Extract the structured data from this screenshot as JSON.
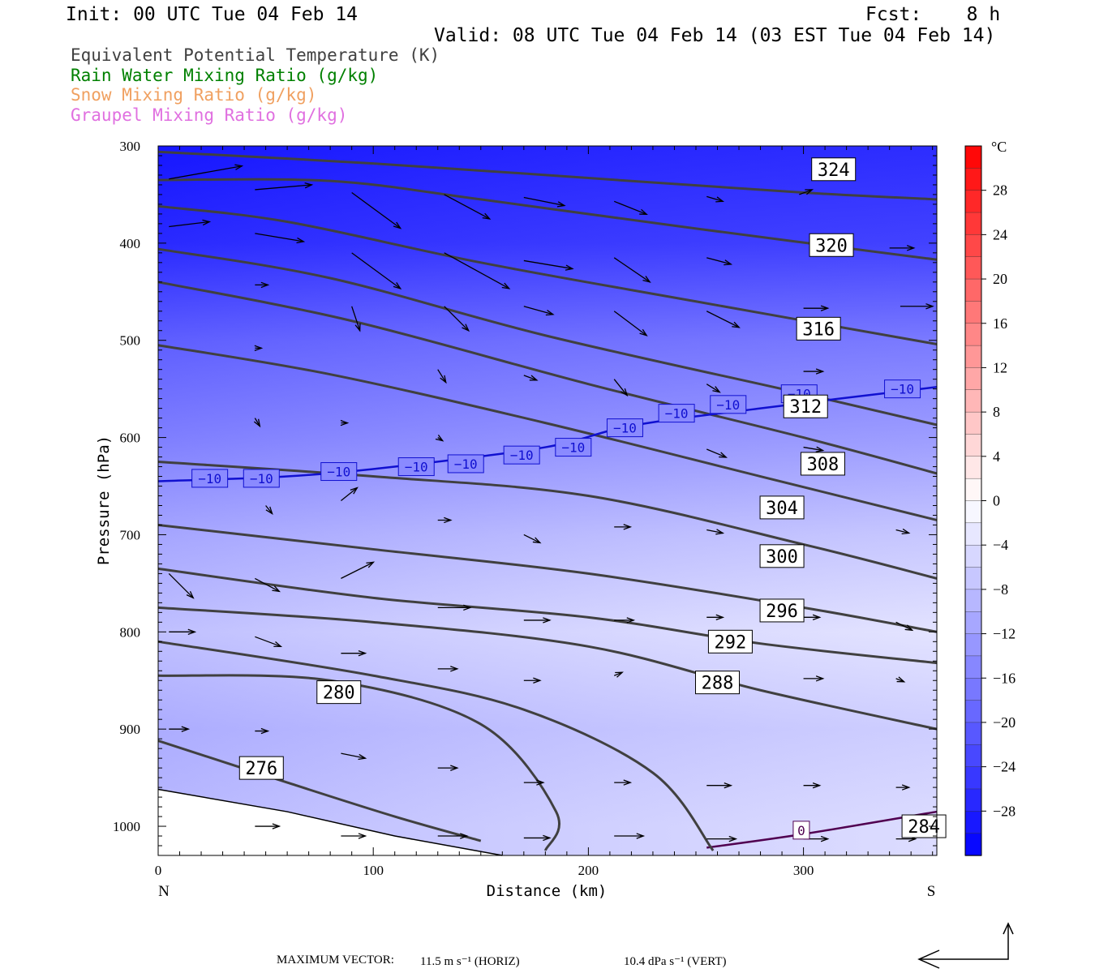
{
  "header": {
    "init": "Init: 00 UTC Tue 04 Feb 14",
    "fcst": "Fcst:    8 h",
    "valid": "Valid: 08 UTC Tue 04 Feb 14 (03 EST Tue 04 Feb 14)"
  },
  "legend": [
    {
      "text": "Equivalent Potential Temperature (K)",
      "color": "#404040"
    },
    {
      "text": "Rain Water Mixing Ratio (g/kg)",
      "color": "#008000"
    },
    {
      "text": "Snow Mixing Ratio (g/kg)",
      "color": "#f0a060"
    },
    {
      "text": "Graupel Mixing Ratio (g/kg)",
      "color": "#e070e0"
    }
  ],
  "footer": {
    "label": "MAXIMUM VECTOR:",
    "horiz": "11.5 m s⁻¹ (HORIZ)",
    "vert": "10.4 dPa s⁻¹ (VERT)"
  },
  "chart_data": {
    "type": "heatmap",
    "title": "",
    "xlabel": "Distance (km)",
    "ylabel": "Pressure (hPa)",
    "xlim": [
      0,
      362
    ],
    "ylim": [
      1030,
      300
    ],
    "xticks": [
      0,
      100,
      200,
      300
    ],
    "yticks": [
      300,
      400,
      500,
      600,
      700,
      800,
      900,
      1000
    ],
    "x_end_labels": {
      "left": "N",
      "right": "S"
    },
    "colorbar": {
      "unit": "°C",
      "ticks": [
        28,
        24,
        20,
        16,
        12,
        8,
        4,
        0,
        -4,
        -8,
        -12,
        -16,
        -20,
        -24,
        -28
      ],
      "tick_labels": [
        "28",
        "24",
        "20",
        "16",
        "12",
        "8",
        "4",
        "0",
        "−04",
        "−8",
        "−12",
        "−16",
        "−20",
        "−24",
        "−28"
      ],
      "range": [
        -32,
        32
      ]
    },
    "temperature_shading": [
      {
        "p": 300,
        "t": -30
      },
      {
        "p": 400,
        "t": -27
      },
      {
        "p": 500,
        "t": -19
      },
      {
        "p": 600,
        "t": -14
      },
      {
        "p": 700,
        "t": -8
      },
      {
        "p": 800,
        "t": -4
      },
      {
        "p": 900,
        "t": -7
      },
      {
        "p": 1000,
        "t": -5
      }
    ],
    "theta_e_contours": [
      {
        "value": "324",
        "points": [
          [
            0,
            306
          ],
          [
            100,
            318
          ],
          [
            200,
            333
          ],
          [
            300,
            348
          ],
          [
            362,
            355
          ]
        ],
        "label_at": [
          314,
          324
        ]
      },
      {
        "value": "320",
        "points": [
          [
            0,
            335
          ],
          [
            80,
            336
          ],
          [
            150,
            355
          ],
          [
            250,
            385
          ],
          [
            362,
            417
          ]
        ],
        "label_at": [
          313,
          402
        ]
      },
      {
        "value": "316",
        "points": [
          [
            0,
            362
          ],
          [
            60,
            378
          ],
          [
            150,
            420
          ],
          [
            250,
            460
          ],
          [
            362,
            504
          ]
        ],
        "label_at": [
          307,
          488
        ]
      },
      {
        "value": "312",
        "points": [
          [
            0,
            406
          ],
          [
            80,
            436
          ],
          [
            180,
            495
          ],
          [
            300,
            555
          ],
          [
            362,
            587
          ]
        ],
        "label_at": [
          301,
          568
        ]
      },
      {
        "value": "308",
        "points": [
          [
            0,
            440
          ],
          [
            90,
            480
          ],
          [
            200,
            545
          ],
          [
            300,
            600
          ],
          [
            362,
            637
          ]
        ],
        "label_at": [
          309,
          627
        ]
      },
      {
        "value": "304",
        "points": [
          [
            0,
            505
          ],
          [
            80,
            535
          ],
          [
            180,
            585
          ],
          [
            280,
            640
          ],
          [
            362,
            685
          ]
        ],
        "label_at": [
          290,
          672
        ]
      },
      {
        "value": "300",
        "points": [
          [
            0,
            625
          ],
          [
            100,
            640
          ],
          [
            200,
            660
          ],
          [
            300,
            710
          ],
          [
            362,
            745
          ]
        ],
        "label_at": [
          290,
          722
        ]
      },
      {
        "value": "296",
        "points": [
          [
            0,
            690
          ],
          [
            100,
            715
          ],
          [
            200,
            740
          ],
          [
            300,
            775
          ],
          [
            362,
            800
          ]
        ],
        "label_at": [
          290,
          778
        ]
      },
      {
        "value": "292",
        "points": [
          [
            0,
            735
          ],
          [
            100,
            765
          ],
          [
            200,
            785
          ],
          [
            280,
            812
          ],
          [
            362,
            832
          ]
        ],
        "label_at": [
          266,
          810
        ]
      },
      {
        "value": "288",
        "points": [
          [
            0,
            775
          ],
          [
            100,
            790
          ],
          [
            200,
            815
          ],
          [
            280,
            860
          ],
          [
            362,
            900
          ]
        ],
        "label_at": [
          260,
          852
        ]
      },
      {
        "value": "284",
        "points": [
          [
            0,
            810
          ],
          [
            100,
            845
          ],
          [
            170,
            880
          ],
          [
            230,
            945
          ],
          [
            258,
            1025
          ]
        ],
        "label_at": [
          356,
          1000
        ]
      },
      {
        "value": "280",
        "points": [
          [
            0,
            845
          ],
          [
            80,
            850
          ],
          [
            150,
            895
          ],
          [
            185,
            985
          ],
          [
            180,
            1025
          ]
        ],
        "label_at": [
          84,
          862
        ]
      },
      {
        "value": "276",
        "points": [
          [
            0,
            912
          ],
          [
            60,
            955
          ],
          [
            110,
            990
          ],
          [
            150,
            1015
          ]
        ],
        "label_at": [
          48,
          940
        ]
      }
    ],
    "isotherm_minus10": {
      "value": "−10",
      "points": [
        [
          0,
          645
        ],
        [
          60,
          640
        ],
        [
          110,
          630
        ],
        [
          180,
          610
        ],
        [
          220,
          588
        ],
        [
          280,
          570
        ],
        [
          362,
          548
        ]
      ]
    },
    "isotherm_zero": {
      "value": "0",
      "points": [
        [
          255,
          1022
        ],
        [
          300,
          1008
        ],
        [
          362,
          985
        ]
      ]
    },
    "wind_vectors": [
      {
        "x": 5,
        "p": 334,
        "u": 45,
        "w": -8
      },
      {
        "x": 45,
        "p": 345,
        "u": 35,
        "w": -3
      },
      {
        "x": 90,
        "p": 348,
        "u": 30,
        "w": 22
      },
      {
        "x": 133,
        "p": 350,
        "u": 28,
        "w": 15
      },
      {
        "x": 170,
        "p": 353,
        "u": 25,
        "w": 5
      },
      {
        "x": 212,
        "p": 357,
        "u": 20,
        "w": 8
      },
      {
        "x": 255,
        "p": 352,
        "u": 10,
        "w": 3
      },
      {
        "x": 298,
        "p": 350,
        "u": 8,
        "w": -3
      },
      {
        "x": 5,
        "p": 383,
        "u": 25,
        "w": -3
      },
      {
        "x": 45,
        "p": 390,
        "u": 30,
        "w": 5
      },
      {
        "x": 90,
        "p": 410,
        "u": 30,
        "w": 22
      },
      {
        "x": 133,
        "p": 410,
        "u": 40,
        "w": 22
      },
      {
        "x": 170,
        "p": 418,
        "u": 30,
        "w": 5
      },
      {
        "x": 212,
        "p": 415,
        "u": 22,
        "w": 15
      },
      {
        "x": 255,
        "p": 415,
        "u": 15,
        "w": 4
      },
      {
        "x": 340,
        "p": 405,
        "u": 15,
        "w": 0
      },
      {
        "x": 45,
        "p": 443,
        "u": 8,
        "w": 0
      },
      {
        "x": 90,
        "p": 465,
        "u": 5,
        "w": 15
      },
      {
        "x": 133,
        "p": 465,
        "u": 15,
        "w": 15
      },
      {
        "x": 170,
        "p": 465,
        "u": 18,
        "w": 5
      },
      {
        "x": 212,
        "p": 470,
        "u": 20,
        "w": 15
      },
      {
        "x": 255,
        "p": 470,
        "u": 20,
        "w": 10
      },
      {
        "x": 300,
        "p": 467,
        "u": 15,
        "w": 0
      },
      {
        "x": 345,
        "p": 465,
        "u": 20,
        "w": 0
      },
      {
        "x": 45,
        "p": 508,
        "u": 4,
        "w": 0
      },
      {
        "x": 130,
        "p": 530,
        "u": 5,
        "w": 8
      },
      {
        "x": 170,
        "p": 536,
        "u": 8,
        "w": 3
      },
      {
        "x": 212,
        "p": 540,
        "u": 8,
        "w": 10
      },
      {
        "x": 255,
        "p": 545,
        "u": 8,
        "w": 5
      },
      {
        "x": 300,
        "p": 532,
        "u": 12,
        "w": 0
      },
      {
        "x": 45,
        "p": 580,
        "u": 3,
        "w": 5
      },
      {
        "x": 85,
        "p": 585,
        "u": 4,
        "w": 0
      },
      {
        "x": 130,
        "p": 600,
        "u": 3,
        "w": 2
      },
      {
        "x": 170,
        "p": 612,
        "u": 8,
        "w": 5
      },
      {
        "x": 255,
        "p": 612,
        "u": 12,
        "w": 5
      },
      {
        "x": 300,
        "p": 610,
        "u": 12,
        "w": 2
      },
      {
        "x": 50,
        "p": 670,
        "u": 4,
        "w": 5
      },
      {
        "x": 85,
        "p": 665,
        "u": 10,
        "w": -8
      },
      {
        "x": 130,
        "p": 685,
        "u": 8,
        "w": 0
      },
      {
        "x": 170,
        "p": 700,
        "u": 10,
        "w": 5
      },
      {
        "x": 212,
        "p": 692,
        "u": 10,
        "w": 0
      },
      {
        "x": 255,
        "p": 695,
        "u": 10,
        "w": 2
      },
      {
        "x": 343,
        "p": 695,
        "u": 8,
        "w": 2
      },
      {
        "x": 5,
        "p": 740,
        "u": 15,
        "w": 15
      },
      {
        "x": 45,
        "p": 745,
        "u": 15,
        "w": 8
      },
      {
        "x": 85,
        "p": 745,
        "u": 20,
        "w": -10
      },
      {
        "x": 130,
        "p": 775,
        "u": 20,
        "w": 0
      },
      {
        "x": 170,
        "p": 788,
        "u": 16,
        "w": 0
      },
      {
        "x": 212,
        "p": 788,
        "u": 12,
        "w": 0
      },
      {
        "x": 255,
        "p": 785,
        "u": 10,
        "w": 0
      },
      {
        "x": 300,
        "p": 785,
        "u": 10,
        "w": 0
      },
      {
        "x": 343,
        "p": 790,
        "u": 10,
        "w": 5
      },
      {
        "x": 5,
        "p": 800,
        "u": 16,
        "w": 0
      },
      {
        "x": 45,
        "p": 805,
        "u": 16,
        "w": 6
      },
      {
        "x": 85,
        "p": 822,
        "u": 15,
        "w": 0
      },
      {
        "x": 130,
        "p": 838,
        "u": 12,
        "w": 0
      },
      {
        "x": 170,
        "p": 850,
        "u": 10,
        "w": 0
      },
      {
        "x": 212,
        "p": 845,
        "u": 5,
        "w": -2
      },
      {
        "x": 300,
        "p": 848,
        "u": 12,
        "w": 0
      },
      {
        "x": 343,
        "p": 848,
        "u": 5,
        "w": 2
      },
      {
        "x": 5,
        "p": 900,
        "u": 12,
        "w": 0
      },
      {
        "x": 45,
        "p": 902,
        "u": 8,
        "w": 0
      },
      {
        "x": 85,
        "p": 925,
        "u": 15,
        "w": 3
      },
      {
        "x": 130,
        "p": 940,
        "u": 12,
        "w": 0
      },
      {
        "x": 170,
        "p": 955,
        "u": 12,
        "w": 0
      },
      {
        "x": 212,
        "p": 955,
        "u": 10,
        "w": 0
      },
      {
        "x": 255,
        "p": 958,
        "u": 15,
        "w": 0
      },
      {
        "x": 300,
        "p": 958,
        "u": 10,
        "w": 0
      },
      {
        "x": 343,
        "p": 960,
        "u": 8,
        "w": 0
      },
      {
        "x": 45,
        "p": 1000,
        "u": 15,
        "w": 0
      },
      {
        "x": 85,
        "p": 1010,
        "u": 15,
        "w": 0
      },
      {
        "x": 130,
        "p": 1010,
        "u": 18,
        "w": 0
      },
      {
        "x": 170,
        "p": 1012,
        "u": 16,
        "w": 0
      },
      {
        "x": 212,
        "p": 1010,
        "u": 18,
        "w": 0
      },
      {
        "x": 255,
        "p": 1013,
        "u": 18,
        "w": 0
      },
      {
        "x": 300,
        "p": 1013,
        "u": 15,
        "w": 0
      },
      {
        "x": 343,
        "p": 1013,
        "u": 12,
        "w": 0
      }
    ],
    "grid": false
  }
}
